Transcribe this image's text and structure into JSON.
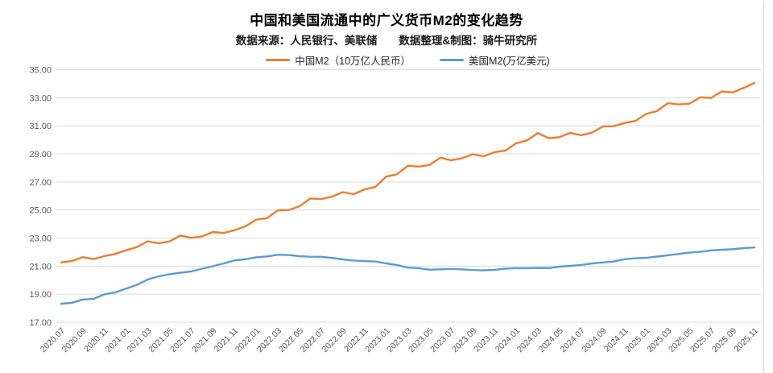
{
  "title": "中国和美国流通中的广义货币M2的变化趋势",
  "subtitle": "数据来源：人民银行、美联储　　数据整理&制图：骑牛研究所",
  "legend": [
    {
      "label": "中国M2（10万亿人民币）",
      "color": "#ED7D31"
    },
    {
      "label": "美国M2(万亿美元)",
      "color": "#5B9BD5"
    }
  ],
  "colors": {
    "china_line": "#ED7D31",
    "us_line": "#5B9BD5",
    "gridline": "#D9D9D9",
    "axis_text": "#595959",
    "title_text": "#000000"
  },
  "chart_data": {
    "type": "line",
    "title": "中国和美国流通中的广义货币M2的变化趋势",
    "subtitle": "数据来源：人民银行、美联储　数据整理&制图：骑牛研究所",
    "xlabel": "",
    "ylabel": "",
    "ylim": [
      17,
      35
    ],
    "ytick_step": 2,
    "y_ticks": [
      "17.00",
      "19.00",
      "21.00",
      "23.00",
      "25.00",
      "27.00",
      "29.00",
      "31.00",
      "33.00",
      "35.00"
    ],
    "grid": true,
    "legend_position": "top",
    "x_tick_every": 2,
    "x": [
      "2020.07",
      "2020.08",
      "2020.09",
      "2020.10",
      "2020.11",
      "2020.12",
      "2021.01",
      "2021.02",
      "2021.03",
      "2021.04",
      "2021.05",
      "2021.06",
      "2021.07",
      "2021.08",
      "2021.09",
      "2021.10",
      "2021.11",
      "2021.12",
      "2022.01",
      "2022.02",
      "2022.03",
      "2022.04",
      "2022.05",
      "2022.06",
      "2022.07",
      "2022.08",
      "2022.09",
      "2022.10",
      "2022.11",
      "2022.12",
      "2023.01",
      "2023.02",
      "2023.03",
      "2023.04",
      "2023.05",
      "2023.06",
      "2023.07",
      "2023.08",
      "2023.09",
      "2023.10",
      "2023.11",
      "2023.12",
      "2024.01",
      "2024.02",
      "2024.03",
      "2024.04",
      "2024.05",
      "2024.06",
      "2024.07",
      "2024.08",
      "2024.09",
      "2024.10",
      "2024.11",
      "2024.12",
      "2025.01",
      "2025.02",
      "2025.03",
      "2025.04",
      "2025.05",
      "2025.06",
      "2025.07",
      "2025.08",
      "2025.09",
      "2025.10",
      "2025.11"
    ],
    "series": [
      {
        "name": "中国M2（10万亿人民币）",
        "color": "#ED7D31",
        "values": [
          21.26,
          21.37,
          21.64,
          21.5,
          21.72,
          21.87,
          22.13,
          22.36,
          22.77,
          22.62,
          22.76,
          23.18,
          23.02,
          23.12,
          23.43,
          23.36,
          23.56,
          23.83,
          24.31,
          24.42,
          24.98,
          25.0,
          25.27,
          25.82,
          25.78,
          25.95,
          26.27,
          26.13,
          26.47,
          26.64,
          27.38,
          27.55,
          28.15,
          28.09,
          28.21,
          28.73,
          28.54,
          28.69,
          28.97,
          28.82,
          29.12,
          29.23,
          29.76,
          29.96,
          30.48,
          30.12,
          30.19,
          30.5,
          30.33,
          30.51,
          30.95,
          30.97,
          31.2,
          31.35,
          31.85,
          32.05,
          32.61,
          32.52,
          32.58,
          33.03,
          32.99,
          33.45,
          33.38,
          33.7,
          34.05
        ]
      },
      {
        "name": "美国M2(万亿美元)",
        "color": "#5B9BD5",
        "values": [
          18.32,
          18.39,
          18.62,
          18.67,
          18.99,
          19.13,
          19.4,
          19.67,
          20.05,
          20.27,
          20.42,
          20.53,
          20.62,
          20.82,
          20.99,
          21.19,
          21.41,
          21.49,
          21.63,
          21.69,
          21.81,
          21.79,
          21.71,
          21.67,
          21.66,
          21.58,
          21.48,
          21.4,
          21.36,
          21.33,
          21.19,
          21.08,
          20.89,
          20.85,
          20.75,
          20.77,
          20.8,
          20.77,
          20.72,
          20.7,
          20.74,
          20.82,
          20.86,
          20.85,
          20.87,
          20.86,
          20.96,
          21.02,
          21.08,
          21.19,
          21.26,
          21.33,
          21.49,
          21.56,
          21.59,
          21.68,
          21.77,
          21.87,
          21.96,
          22.02,
          22.12,
          22.17,
          22.21,
          22.28,
          22.33
        ]
      }
    ]
  }
}
